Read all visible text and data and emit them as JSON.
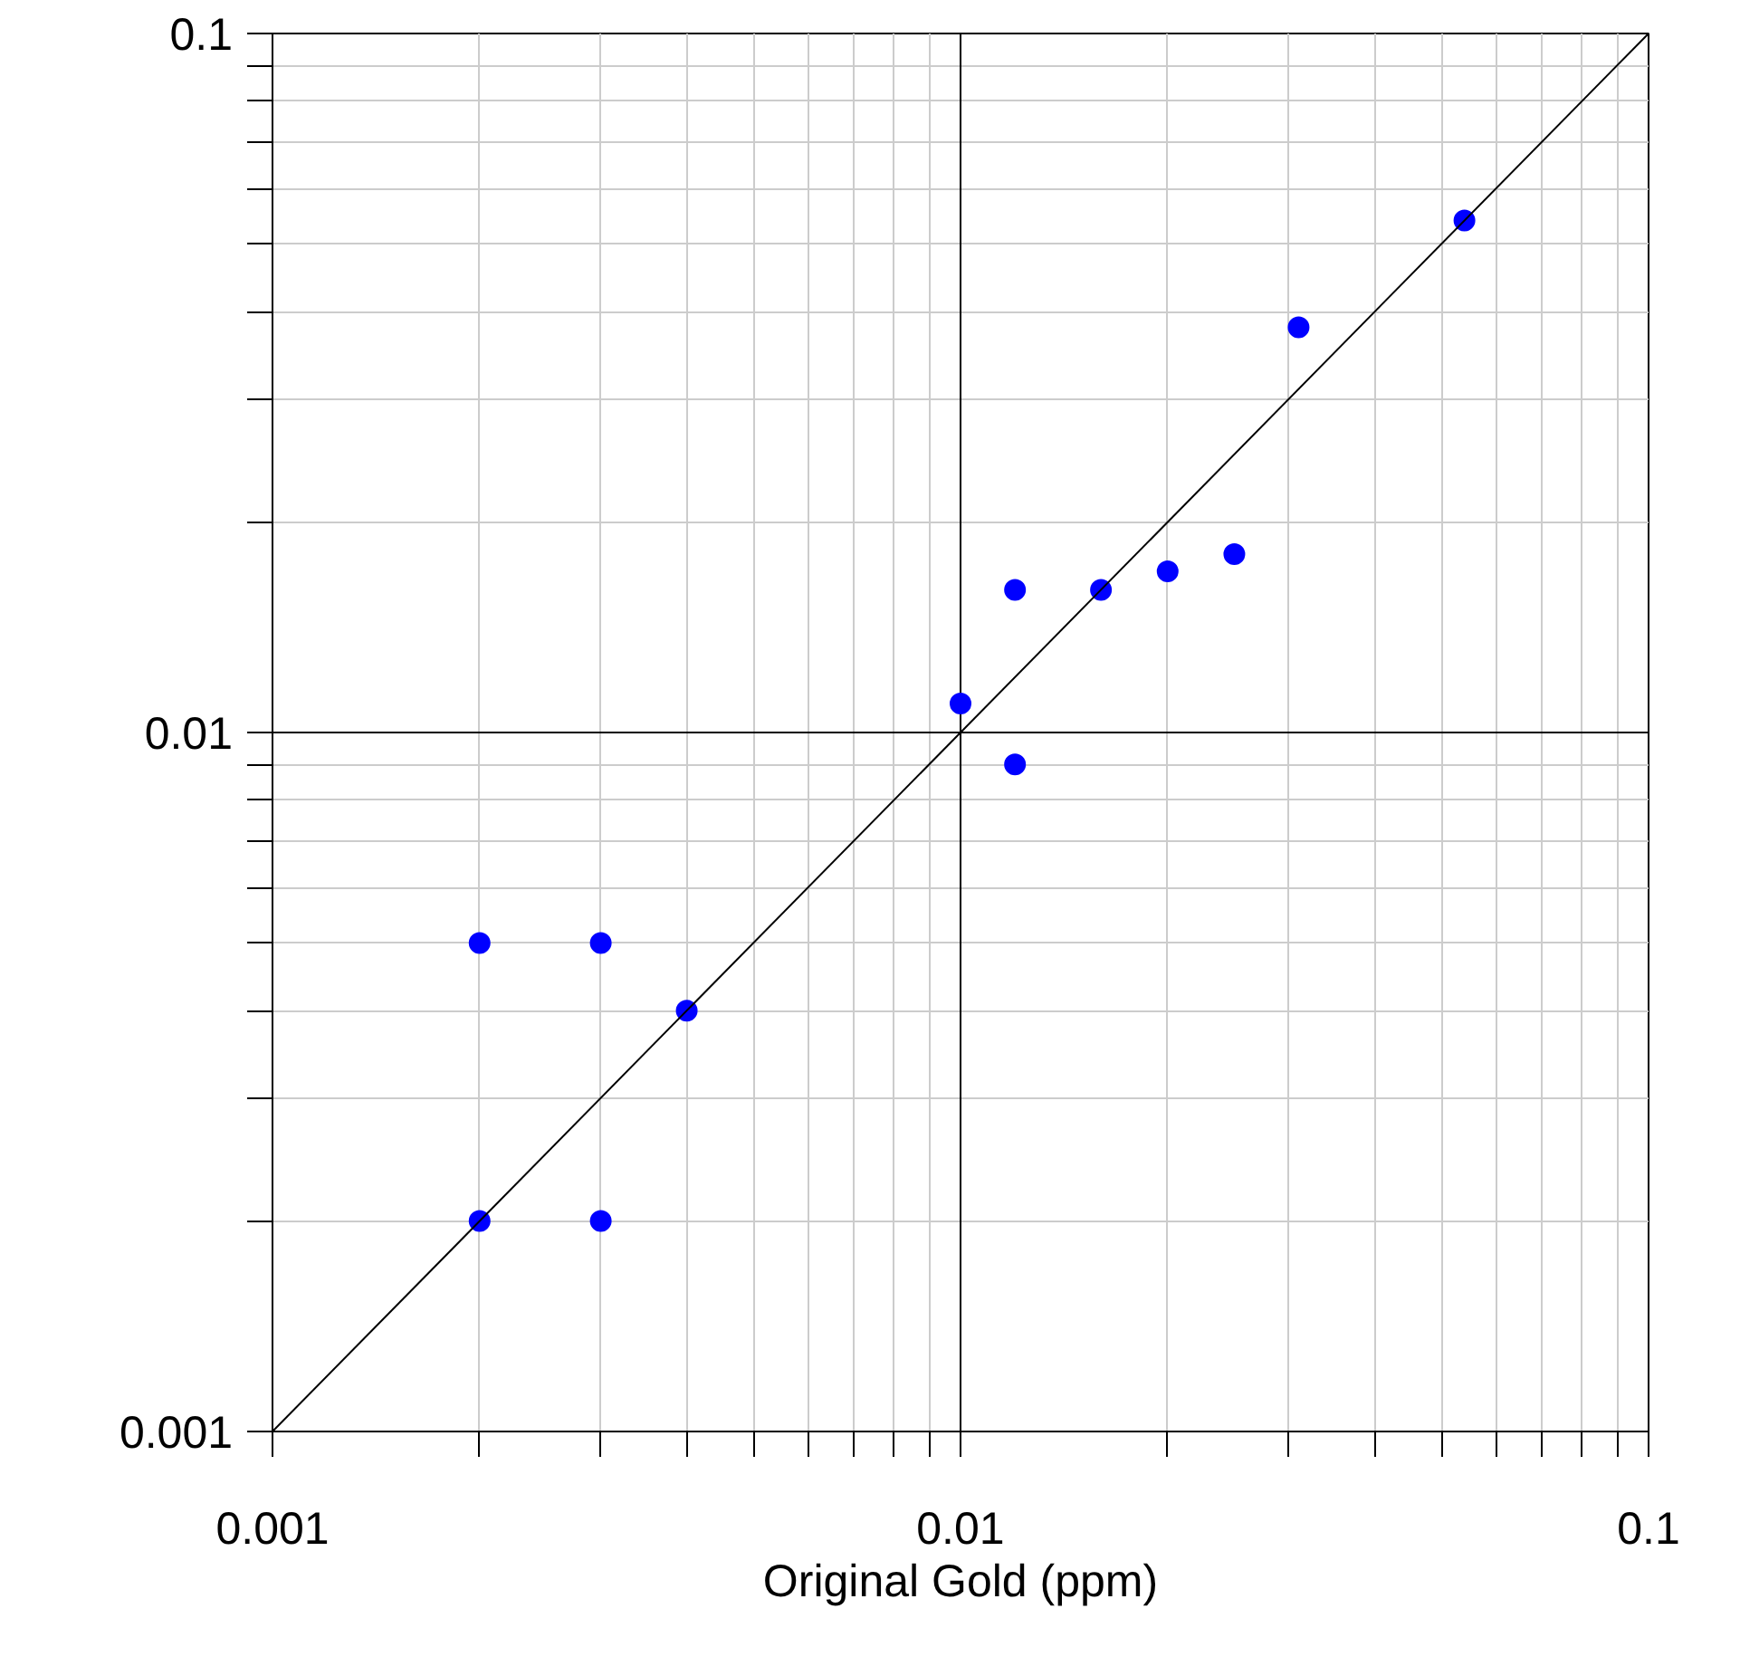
{
  "chart_data": {
    "type": "scatter",
    "xlabel": "Original Gold (ppm)",
    "log": "xy",
    "grid": true,
    "xlim": [
      0.001,
      0.1
    ],
    "ylim": [
      0.001,
      0.1
    ],
    "xticks": [
      0.001,
      {
        "value": 0.002,
        "label": null
      },
      {
        "value": 0.003,
        "label": null
      },
      {
        "value": 0.004,
        "label": null
      },
      {
        "value": 0.005,
        "label": null
      },
      {
        "value": 0.006,
        "label": null
      },
      {
        "value": 0.007,
        "label": null
      },
      {
        "value": 0.008,
        "label": null
      },
      {
        "value": 0.009,
        "label": null
      },
      0.01,
      {
        "value": 0.02,
        "label": null
      },
      {
        "value": 0.03,
        "label": null
      },
      {
        "value": 0.04,
        "label": null
      },
      {
        "value": 0.05,
        "label": null
      },
      {
        "value": 0.06,
        "label": null
      },
      {
        "value": 0.07,
        "label": null
      },
      {
        "value": 0.08,
        "label": null
      },
      {
        "value": 0.09,
        "label": null
      },
      0.1
    ],
    "yticks": [
      0.001,
      {
        "value": 0.002,
        "label": null
      },
      {
        "value": 0.003,
        "label": null
      },
      {
        "value": 0.004,
        "label": null
      },
      {
        "value": 0.005,
        "label": null
      },
      {
        "value": 0.006,
        "label": null
      },
      {
        "value": 0.007,
        "label": null
      },
      {
        "value": 0.008,
        "label": null
      },
      {
        "value": 0.009,
        "label": null
      },
      0.01,
      {
        "value": 0.02,
        "label": null
      },
      {
        "value": 0.03,
        "label": null
      },
      {
        "value": 0.04,
        "label": null
      },
      {
        "value": 0.05,
        "label": null
      },
      {
        "value": 0.06,
        "label": null
      },
      {
        "value": 0.07,
        "label": null
      },
      {
        "value": 0.08,
        "label": null
      },
      {
        "value": 0.09,
        "label": null
      },
      0.1
    ],
    "series": [
      {
        "marker": "circle",
        "color": "#0000ff",
        "x": [
          0.002,
          0.003,
          0.004,
          0.002,
          0.003,
          0.01,
          0.012,
          0.012,
          0.016,
          0.02,
          0.025,
          0.031,
          0.054
        ],
        "values": [
          0.005,
          0.005,
          0.004,
          0.002,
          0.002,
          0.011,
          0.016,
          0.009,
          0.016,
          0.017,
          0.018,
          0.038,
          0.054
        ]
      },
      {
        "type": "line",
        "color": "#000000",
        "x": [
          0.001,
          0.1
        ],
        "values": [
          0.001,
          0.1
        ]
      }
    ]
  }
}
